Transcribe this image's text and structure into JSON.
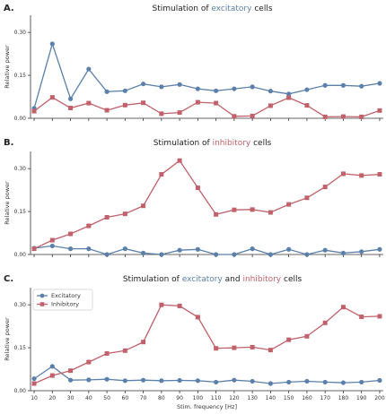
{
  "colors": {
    "excitatory": "#5b80aa",
    "inhibitory": "#c0616b",
    "text": "#222222",
    "axis": "#333333"
  },
  "chart_data": [
    {
      "type": "line",
      "letter": "A.",
      "title_parts": [
        {
          "text": "Stimulation of ",
          "color": "#222222"
        },
        {
          "text": "excitatory",
          "color": "#5b80aa"
        },
        {
          "text": " cells",
          "color": "#222222"
        }
      ],
      "ylabel": "Relative power",
      "xlabel": "",
      "ylim": [
        0,
        0.36
      ],
      "yticks": [
        "0.00",
        "0.15",
        "0.30"
      ],
      "x": [
        10,
        20,
        30,
        40,
        50,
        60,
        70,
        80,
        90,
        100,
        110,
        120,
        130,
        140,
        150,
        160,
        170,
        180,
        190,
        200
      ],
      "series": [
        {
          "key": "excitatory",
          "values": [
            0.035,
            0.26,
            0.068,
            0.172,
            0.093,
            0.096,
            0.12,
            0.11,
            0.118,
            0.103,
            0.096,
            0.103,
            0.11,
            0.095,
            0.085,
            0.1,
            0.115,
            0.115,
            0.112,
            0.122
          ]
        },
        {
          "key": "inhibitory",
          "values": [
            0.025,
            0.073,
            0.036,
            0.053,
            0.028,
            0.046,
            0.054,
            0.016,
            0.02,
            0.056,
            0.053,
            0.007,
            0.008,
            0.044,
            0.072,
            0.045,
            0.005,
            0.006,
            0.005,
            0.027
          ]
        }
      ],
      "legend": []
    },
    {
      "type": "line",
      "letter": "B.",
      "title_parts": [
        {
          "text": "Stimulation of ",
          "color": "#222222"
        },
        {
          "text": "inhibitory",
          "color": "#c0616b"
        },
        {
          "text": " cells",
          "color": "#222222"
        }
      ],
      "ylabel": "Relative power",
      "xlabel": "",
      "ylim": [
        0,
        0.36
      ],
      "yticks": [
        "0.00",
        "0.15",
        "0.30"
      ],
      "x": [
        10,
        20,
        30,
        40,
        50,
        60,
        70,
        80,
        90,
        100,
        110,
        120,
        130,
        140,
        150,
        160,
        170,
        180,
        190,
        200
      ],
      "series": [
        {
          "key": "excitatory",
          "values": [
            0.022,
            0.03,
            0.02,
            0.02,
            0.0,
            0.02,
            0.005,
            0.0,
            0.015,
            0.018,
            0.0,
            0.0,
            0.02,
            0.0,
            0.018,
            0.0,
            0.015,
            0.005,
            0.01,
            0.018
          ]
        },
        {
          "key": "inhibitory",
          "values": [
            0.02,
            0.05,
            0.072,
            0.1,
            0.13,
            0.142,
            0.17,
            0.28,
            0.328,
            0.233,
            0.14,
            0.156,
            0.157,
            0.147,
            0.175,
            0.198,
            0.236,
            0.282,
            0.276,
            0.28
          ]
        }
      ],
      "legend": []
    },
    {
      "type": "line",
      "letter": "C.",
      "title_parts": [
        {
          "text": "Stimulation of ",
          "color": "#222222"
        },
        {
          "text": "excitatory",
          "color": "#5b80aa"
        },
        {
          "text": " and ",
          "color": "#222222"
        },
        {
          "text": "inhibitory",
          "color": "#c0616b"
        },
        {
          "text": " cells",
          "color": "#222222"
        }
      ],
      "ylabel": "Relative power",
      "xlabel": "Stim. frequency [Hz]",
      "ylim": [
        0,
        0.36
      ],
      "yticks": [
        "0.00",
        "0.15",
        "0.30"
      ],
      "xtick_labels": [
        "10",
        "20",
        "30",
        "40",
        "50",
        "60",
        "70",
        "80",
        "90",
        "100",
        "110",
        "120",
        "130",
        "140",
        "150",
        "160",
        "170",
        "180",
        "190",
        "200"
      ],
      "x": [
        10,
        20,
        30,
        40,
        50,
        60,
        70,
        80,
        90,
        100,
        110,
        120,
        130,
        140,
        150,
        160,
        170,
        180,
        190,
        200
      ],
      "series": [
        {
          "key": "excitatory",
          "values": [
            0.042,
            0.085,
            0.037,
            0.038,
            0.04,
            0.035,
            0.037,
            0.035,
            0.036,
            0.035,
            0.03,
            0.037,
            0.033,
            0.025,
            0.03,
            0.033,
            0.03,
            0.028,
            0.03,
            0.036
          ]
        },
        {
          "key": "inhibitory",
          "values": [
            0.025,
            0.053,
            0.07,
            0.1,
            0.13,
            0.14,
            0.17,
            0.3,
            0.296,
            0.257,
            0.148,
            0.15,
            0.152,
            0.142,
            0.178,
            0.19,
            0.237,
            0.292,
            0.258,
            0.26
          ]
        }
      ],
      "legend": [
        {
          "key": "excitatory",
          "label": "Excitatory"
        },
        {
          "key": "inhibitory",
          "label": "Inhibitory"
        }
      ]
    }
  ]
}
